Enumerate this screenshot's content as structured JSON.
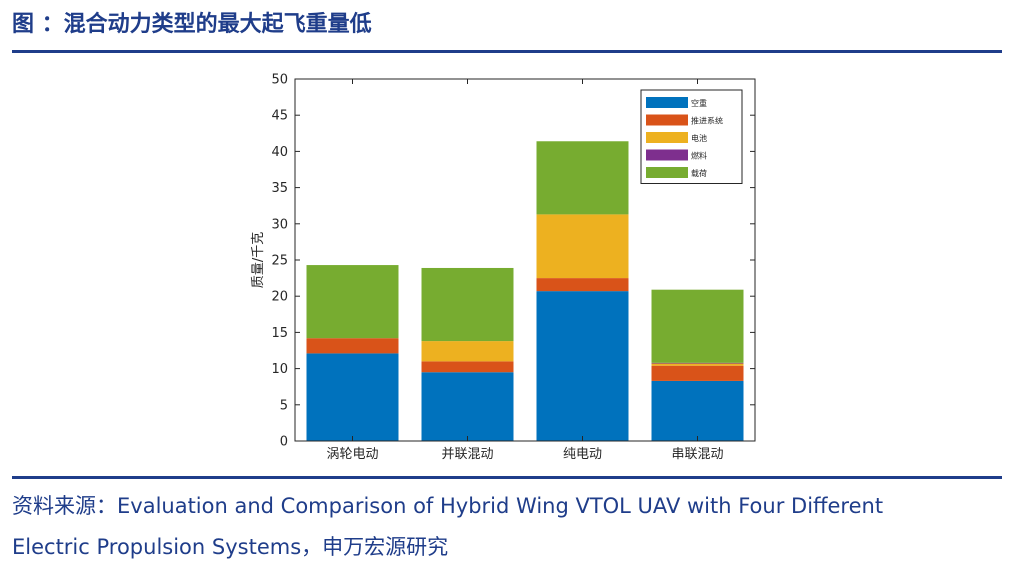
{
  "header": {
    "title": "图 ：混合动力类型的最大起飞重量低"
  },
  "chart_data": {
    "type": "bar",
    "stacked": true,
    "categories": [
      "涡轮电动",
      "并联混动",
      "纯电动",
      "串联混动"
    ],
    "series": [
      {
        "name": "空重",
        "color": "#0072BD",
        "values": [
          12.1,
          9.5,
          20.7,
          8.3
        ]
      },
      {
        "name": "推进系统",
        "color": "#D95319",
        "values": [
          2.1,
          1.5,
          1.8,
          2.1
        ]
      },
      {
        "name": "电池",
        "color": "#EDB120",
        "values": [
          0.0,
          2.8,
          8.8,
          0.3
        ]
      },
      {
        "name": "燃料",
        "color": "#7E2F8E",
        "values": [
          0.0,
          0.0,
          0.0,
          0.1
        ]
      },
      {
        "name": "载荷",
        "color": "#77AC30",
        "values": [
          10.1,
          10.1,
          10.1,
          10.1
        ]
      }
    ],
    "ylabel": "质量/千克",
    "xlabel": "",
    "ylim": [
      0,
      50
    ],
    "yticks": [
      0,
      5,
      10,
      15,
      20,
      25,
      30,
      35,
      40,
      45,
      50
    ],
    "legend_position": "top-right",
    "grid": false
  },
  "source": {
    "line1": "资料来源：Evaluation and Comparison of Hybrid Wing VTOL UAV with Four Different",
    "line2": "Electric Propulsion Systems，申万宏源研究"
  }
}
